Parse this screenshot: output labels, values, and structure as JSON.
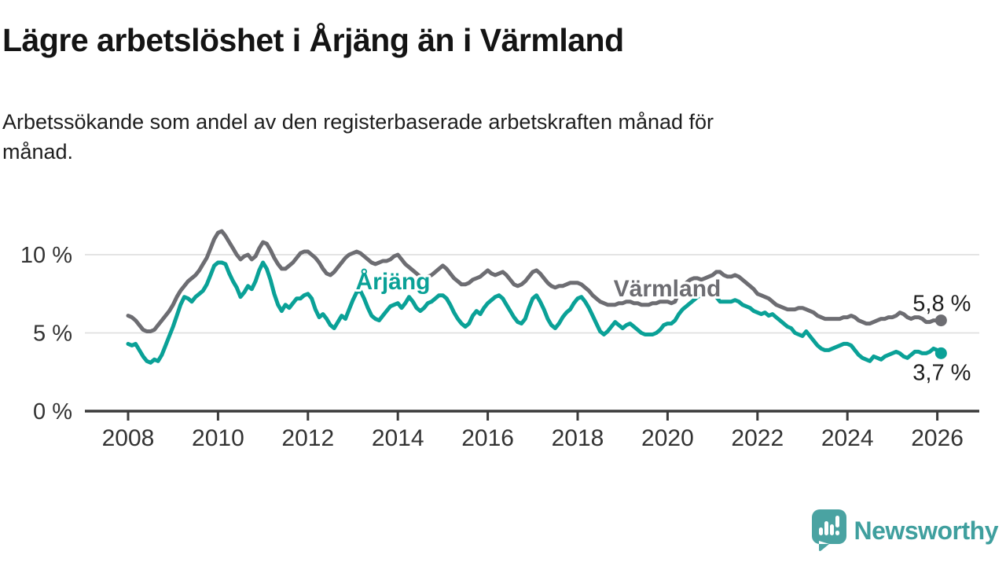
{
  "header": {
    "title": "Lägre arbetslöshet i Årjäng än i Värmland",
    "subtitle": "Arbetssökande som andel av den registerbaserade arbetskraften månad för\nmånad."
  },
  "chart_data": {
    "type": "line",
    "x_start": {
      "year": 2008,
      "month": 1
    },
    "x_end": {
      "year": 2026,
      "month": 2
    },
    "points_per_year": 12,
    "x_tick_labels": [
      "2008",
      "2010",
      "2012",
      "2014",
      "2016",
      "2018",
      "2020",
      "2022",
      "2024",
      "2026"
    ],
    "y_ticks": [
      {
        "value": 10,
        "label": "10 %"
      },
      {
        "value": 5,
        "label": "5 %"
      },
      {
        "value": 0,
        "label": "0 %"
      }
    ],
    "ylim": [
      0,
      12
    ],
    "grid": "horizontal-only",
    "legend_position": "inline-labels",
    "colors": {
      "varmland": "#6d6d72",
      "arjang": "#0aa197",
      "axis": "#3b3b3b",
      "gridline": "#dcdcdc",
      "end_label_text": "#1e1e1e"
    },
    "series": [
      {
        "name": "Värmland",
        "color": "#6d6d72",
        "end_label": "5,8 %",
        "end_value": 5.8,
        "values": [
          6.1,
          6.0,
          5.8,
          5.5,
          5.2,
          5.1,
          5.1,
          5.2,
          5.5,
          5.8,
          6.1,
          6.4,
          6.8,
          7.3,
          7.7,
          8.0,
          8.3,
          8.5,
          8.7,
          9.0,
          9.4,
          9.8,
          10.4,
          11.0,
          11.4,
          11.5,
          11.2,
          10.8,
          10.4,
          10.0,
          9.7,
          9.9,
          10.0,
          9.7,
          9.9,
          10.4,
          10.8,
          10.7,
          10.3,
          9.8,
          9.4,
          9.1,
          9.1,
          9.3,
          9.5,
          9.8,
          10.1,
          10.2,
          10.2,
          10.0,
          9.8,
          9.5,
          9.1,
          8.8,
          8.7,
          8.9,
          9.2,
          9.5,
          9.8,
          10.0,
          10.1,
          10.2,
          10.1,
          9.9,
          9.7,
          9.5,
          9.4,
          9.5,
          9.6,
          9.6,
          9.7,
          9.9,
          10.0,
          9.7,
          9.4,
          9.2,
          9.0,
          8.8,
          8.6,
          8.5,
          8.6,
          8.7,
          8.9,
          9.1,
          9.3,
          9.1,
          8.8,
          8.5,
          8.3,
          8.1,
          8.1,
          8.2,
          8.4,
          8.5,
          8.6,
          8.8,
          9.0,
          8.8,
          8.7,
          8.8,
          8.9,
          8.7,
          8.4,
          8.1,
          8.0,
          8.1,
          8.3,
          8.6,
          8.9,
          9.0,
          8.8,
          8.5,
          8.2,
          8.0,
          7.9,
          8.0,
          8.0,
          8.1,
          8.2,
          8.2,
          8.2,
          8.1,
          7.9,
          7.7,
          7.4,
          7.2,
          7.0,
          6.9,
          6.8,
          6.8,
          6.8,
          6.9,
          6.9,
          7.0,
          7.0,
          6.9,
          6.9,
          6.8,
          6.8,
          6.8,
          6.9,
          6.9,
          7.0,
          7.0,
          7.0,
          6.9,
          7.0,
          7.6,
          8.0,
          8.2,
          8.4,
          8.5,
          8.5,
          8.4,
          8.5,
          8.6,
          8.7,
          8.9,
          8.9,
          8.7,
          8.6,
          8.6,
          8.7,
          8.6,
          8.4,
          8.2,
          8.0,
          7.8,
          7.5,
          7.4,
          7.3,
          7.2,
          7.0,
          6.8,
          6.7,
          6.6,
          6.5,
          6.5,
          6.5,
          6.6,
          6.6,
          6.5,
          6.4,
          6.3,
          6.1,
          6.0,
          5.9,
          5.9,
          5.9,
          5.9,
          5.9,
          6.0,
          6.0,
          6.1,
          6.0,
          5.8,
          5.7,
          5.6,
          5.6,
          5.7,
          5.8,
          5.9,
          5.9,
          6.0,
          6.0,
          6.1,
          6.3,
          6.2,
          6.0,
          5.9,
          6.0,
          6.0,
          5.9,
          5.7,
          5.7,
          5.8,
          5.8,
          5.8
        ]
      },
      {
        "name": "Årjäng",
        "color": "#0aa197",
        "end_label": "3,7 %",
        "end_value": 3.7,
        "values": [
          4.3,
          4.2,
          4.3,
          3.9,
          3.5,
          3.2,
          3.1,
          3.3,
          3.2,
          3.6,
          4.2,
          4.8,
          5.4,
          6.1,
          6.8,
          7.3,
          7.2,
          7.0,
          7.3,
          7.5,
          7.7,
          8.1,
          8.7,
          9.3,
          9.5,
          9.5,
          9.4,
          8.8,
          8.3,
          7.9,
          7.3,
          7.6,
          8.0,
          7.8,
          8.3,
          9.0,
          9.5,
          9.1,
          8.4,
          7.5,
          6.8,
          6.4,
          6.8,
          6.6,
          6.9,
          7.2,
          7.2,
          7.4,
          7.5,
          7.2,
          6.5,
          6.0,
          6.2,
          5.9,
          5.5,
          5.3,
          5.7,
          6.1,
          5.9,
          6.5,
          7.1,
          7.6,
          7.7,
          7.2,
          6.6,
          6.1,
          5.9,
          5.8,
          6.1,
          6.4,
          6.7,
          6.8,
          6.9,
          6.6,
          6.9,
          7.3,
          7.0,
          6.6,
          6.4,
          6.6,
          6.9,
          7.0,
          7.2,
          7.4,
          7.4,
          7.2,
          6.8,
          6.3,
          5.9,
          5.6,
          5.4,
          5.6,
          6.1,
          6.4,
          6.2,
          6.6,
          6.9,
          7.1,
          7.3,
          7.4,
          7.2,
          6.8,
          6.4,
          6.0,
          5.7,
          5.6,
          5.9,
          6.6,
          7.2,
          7.4,
          7.0,
          6.5,
          5.9,
          5.5,
          5.3,
          5.6,
          6.0,
          6.3,
          6.5,
          6.9,
          7.2,
          7.3,
          7.0,
          6.6,
          6.1,
          5.6,
          5.1,
          4.9,
          5.1,
          5.4,
          5.7,
          5.5,
          5.3,
          5.5,
          5.6,
          5.4,
          5.2,
          5.0,
          4.9,
          4.9,
          4.9,
          5.0,
          5.2,
          5.5,
          5.6,
          5.6,
          5.8,
          6.2,
          6.5,
          6.7,
          6.9,
          7.1,
          7.3,
          7.4,
          7.4,
          7.5,
          7.5,
          7.3,
          7.0,
          7.0,
          7.0,
          7.0,
          7.1,
          7.0,
          6.8,
          6.7,
          6.6,
          6.4,
          6.3,
          6.2,
          6.3,
          6.1,
          6.2,
          6.0,
          5.8,
          5.6,
          5.4,
          5.3,
          5.0,
          4.9,
          4.8,
          5.1,
          4.8,
          4.5,
          4.2,
          4.0,
          3.9,
          3.9,
          4.0,
          4.1,
          4.2,
          4.3,
          4.3,
          4.2,
          3.9,
          3.6,
          3.4,
          3.3,
          3.2,
          3.5,
          3.4,
          3.3,
          3.5,
          3.6,
          3.7,
          3.8,
          3.7,
          3.5,
          3.4,
          3.6,
          3.8,
          3.8,
          3.7,
          3.7,
          3.8,
          4.0,
          3.9,
          3.7
        ]
      }
    ],
    "title": "Lägre arbetslöshet i Årjäng än i Värmland",
    "xlabel": "",
    "ylabel": ""
  },
  "branding": {
    "logo_text": "Newsworthy",
    "logo_color": "#3f9f9e",
    "logo_icon": "speech-bubble-bar-chart-exclamation"
  }
}
